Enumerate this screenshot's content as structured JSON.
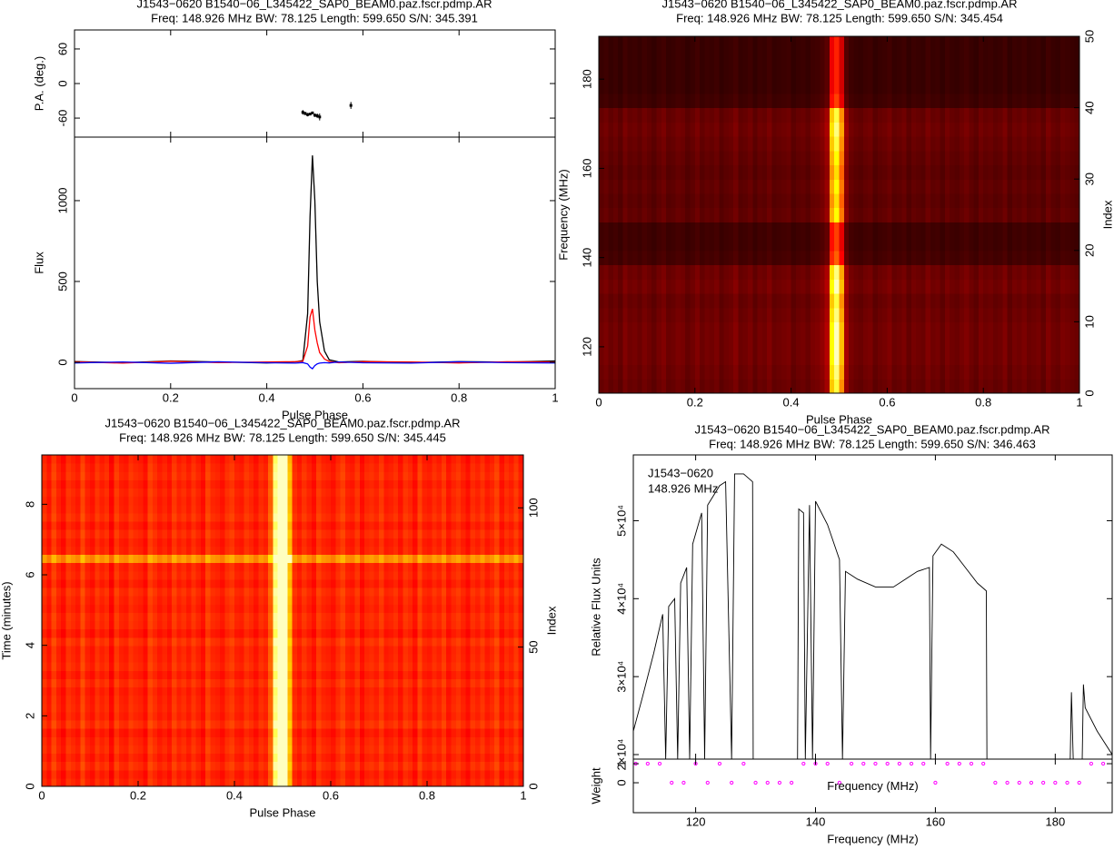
{
  "chart_data": [
    {
      "type": "profile",
      "title": "J1543−0620  B1540−06_L345422_SAP0_BEAM0.paz.fscr.pdmp.AR",
      "subtitle": "Freq: 148.926 MHz BW: 78.125 Length: 599.650 S/N: 345.391",
      "xlabel": "Pulse Phase",
      "xlim": [
        0,
        1
      ],
      "xticks": [
        0,
        0.2,
        0.4,
        0.6,
        0.8,
        1
      ],
      "x": [
        0,
        0.1,
        0.2,
        0.3,
        0.4,
        0.46,
        0.475,
        0.485,
        0.49,
        0.495,
        0.5,
        0.505,
        0.51,
        0.52,
        0.53,
        0.55,
        0.6,
        0.7,
        0.8,
        0.9,
        1
      ],
      "pa": {
        "ylabel": "P.A. (deg.)",
        "ylim": [
          -93,
          93
        ],
        "yticks": [
          -60,
          0,
          60
        ],
        "color": "#000000",
        "x": [
          0.475,
          0.48,
          0.485,
          0.49,
          0.495,
          0.5,
          0.505,
          0.51,
          0.575
        ],
        "values": [
          -50,
          -52,
          -54,
          -53,
          -51,
          -55,
          -56,
          -58,
          -38
        ],
        "errors": [
          4,
          3,
          3,
          2,
          2,
          3,
          4,
          6,
          6
        ]
      },
      "flux": {
        "ylabel": "Flux",
        "ylim": [
          -163,
          1393
        ],
        "yticks": [
          0,
          500,
          1000
        ],
        "series": [
          {
            "color": "#000000",
            "values": [
              5,
              -3,
              8,
              2,
              -4,
              3,
              10,
              300,
              900,
              1280,
              1000,
              500,
              250,
              70,
              15,
              2,
              6,
              -2,
              4,
              1,
              8
            ]
          },
          {
            "color": "#ff0000",
            "values": [
              3,
              -5,
              6,
              -2,
              2,
              4,
              6,
              100,
              280,
              330,
              200,
              120,
              60,
              20,
              5,
              -3,
              4,
              2,
              -4,
              3,
              2
            ]
          },
          {
            "color": "#0000ff",
            "values": [
              -4,
              2,
              -6,
              3,
              -3,
              -5,
              -2,
              -10,
              -30,
              -40,
              -20,
              -10,
              -5,
              -2,
              -4,
              2,
              -3,
              -5,
              3,
              -2,
              -4
            ]
          }
        ]
      }
    },
    {
      "type": "heatmap",
      "title": "J1543−0620  B1540−06_L345422_SAP0_BEAM0.paz.fscr.pdmp.AR",
      "subtitle": "Freq: 148.926 MHz BW: 78.125 Length: 599.650 S/N: 345.454",
      "xlabel": "Pulse Phase",
      "ylabel": "Frequency (MHz)",
      "y2label": "Index",
      "xlim": [
        0,
        1
      ],
      "xticks": [
        0,
        0.2,
        0.4,
        0.6,
        0.8,
        1
      ],
      "ylim": [
        109.6,
        189.6
      ],
      "yticks": [
        120,
        140,
        160,
        180
      ],
      "y2lim": [
        0,
        50
      ],
      "y2ticks": [
        0,
        10,
        20,
        30,
        40,
        50
      ],
      "colormap": "heat",
      "zlim": [
        0,
        1
      ],
      "profile": [
        0.2,
        0.22,
        0.19,
        0.21,
        0.18,
        0.23,
        0.2,
        0.21,
        0.19,
        0.22,
        0.2,
        0.18,
        0.21,
        0.23,
        0.19,
        0.2,
        0.22,
        0.21,
        0.18,
        0.2,
        0.23,
        0.19,
        0.21,
        0.2,
        0.22,
        0.18,
        0.2,
        0.21,
        0.24,
        0.19,
        0.2,
        0.22,
        0.18,
        0.21,
        0.2,
        0.23,
        0.19,
        0.2,
        0.21,
        0.22,
        0.18,
        0.2,
        0.21,
        0.19,
        0.22,
        0.23,
        0.26,
        0.32,
        0.85,
        1,
        0.75,
        0.3,
        0.22,
        0.2,
        0.19,
        0.21,
        0.22,
        0.18,
        0.2,
        0.21,
        0.23,
        0.19,
        0.2,
        0.22,
        0.18,
        0.21,
        0.2,
        0.19,
        0.23,
        0.2,
        0.21,
        0.18,
        0.22,
        0.2,
        0.19,
        0.21,
        0.23,
        0.2,
        0.18,
        0.22,
        0.2,
        0.21,
        0.19,
        0.2,
        0.23,
        0.18,
        0.21,
        0.2,
        0.22,
        0.19,
        0.2,
        0.21,
        0.18,
        0.23,
        0.2,
        0.19,
        0.22,
        0.21,
        0.2,
        0.19
      ],
      "row_weights": [
        0.9,
        0.95,
        1,
        1,
        1,
        0.95,
        0.9,
        1,
        0.95,
        0.6,
        0.55,
        0.55,
        0.85,
        0.8,
        0.85,
        0.8,
        0.85,
        0.9,
        0.95,
        0.9,
        0.55,
        0.5,
        0.5,
        0.5,
        0.5
      ]
    },
    {
      "type": "heatmap",
      "title": "J1543−0620  B1540−06_L345422_SAP0_BEAM0.paz.fscr.pdmp.AR",
      "subtitle": "Freq: 148.926 MHz BW: 78.125 Length: 599.650 S/N: 345.445",
      "xlabel": "Pulse Phase",
      "ylabel": "Time (minutes)",
      "y2label": "Index",
      "xlim": [
        0,
        1
      ],
      "xticks": [
        0,
        0.2,
        0.4,
        0.6,
        0.8,
        1
      ],
      "ylim": [
        0,
        9.4
      ],
      "yticks": [
        0,
        2,
        4,
        6,
        8
      ],
      "y2lim": [
        0,
        119
      ],
      "y2ticks": [
        0,
        50,
        100
      ],
      "colormap": "heat",
      "zlim": [
        0,
        1
      ],
      "profile": [
        0.52,
        0.48,
        0.55,
        0.5,
        0.47,
        0.53,
        0.51,
        0.49,
        0.56,
        0.5,
        0.48,
        0.53,
        0.5,
        0.52,
        0.46,
        0.54,
        0.5,
        0.49,
        0.53,
        0.51,
        0.5,
        0.47,
        0.55,
        0.52,
        0.49,
        0.51,
        0.48,
        0.54,
        0.5,
        0.52,
        0.49,
        0.53,
        0.5,
        0.47,
        0.55,
        0.51,
        0.5,
        0.48,
        0.52,
        0.54,
        0.5,
        0.49,
        0.53,
        0.51,
        0.48,
        0.52,
        0.5,
        0.6,
        0.95,
        1.1,
        1.05,
        0.75,
        0.52,
        0.49,
        0.53,
        0.5,
        0.47,
        0.54,
        0.51,
        0.5,
        0.48,
        0.52,
        0.55,
        0.5,
        0.49,
        0.53,
        0.47,
        0.51,
        0.52,
        0.5,
        0.54,
        0.49,
        0.5,
        0.52,
        0.48,
        0.53,
        0.51,
        0.47,
        0.55,
        0.5,
        0.49,
        0.52,
        0.5,
        0.54,
        0.48,
        0.51,
        0.53,
        0.5,
        0.47,
        0.52,
        0.5,
        0.53,
        0.49,
        0.51,
        0.55,
        0.48,
        0.52,
        0.5,
        0.54,
        0.49
      ],
      "row_weights": [
        1,
        0.97,
        1.03,
        0.98,
        1.02,
        1,
        0.96,
        1.04,
        0.99,
        1.01,
        1,
        0.98,
        1.03,
        0.97,
        1.02,
        1,
        0.99,
        1.04,
        0.96,
        1.01,
        1.02,
        0.98,
        1,
        1.03,
        0.97,
        1.01,
        0.99,
        1.35,
        1,
        0.98,
        1.02,
        0.97,
        1.03,
        1,
        0.99,
        1.01,
        0.98,
        1.02,
        1,
        0.97
      ]
    },
    {
      "type": "spectrum",
      "title": "J1543−0620  B1540−06_L345422_SAP0_BEAM0.paz.fscr.pdmp.AR",
      "subtitle": "Freq: 148.926 MHz BW: 78.125 Length: 599.650 S/N: 346.463",
      "annotations": [
        "J1543−0620",
        "148.926 MHz"
      ],
      "xlabel": "Frequency (MHz)",
      "ylabel": "Relative Flux Units",
      "xlim": [
        109.6,
        189.5
      ],
      "xticks": [
        120,
        140,
        160,
        180
      ],
      "ylim": [
        19420,
        58440
      ],
      "yticks": [
        {
          "value": 20000,
          "label": "2×10⁴"
        },
        {
          "value": 30000,
          "label": "3×10⁴"
        },
        {
          "value": 40000,
          "label": "4×10⁴"
        },
        {
          "value": 50000,
          "label": "5×10⁴"
        }
      ],
      "color": "#000000",
      "x": [
        109.6,
        111,
        113,
        114.5,
        115,
        115.5,
        116.5,
        117,
        117.5,
        118.5,
        119,
        119.5,
        121,
        121.5,
        122,
        124,
        125,
        126,
        126.5,
        128,
        129.5,
        129.6,
        137,
        137.2,
        138,
        138.3,
        139,
        139.5,
        140,
        142,
        144,
        144.5,
        145,
        147,
        150,
        153,
        155,
        157,
        159,
        159.2,
        159.6,
        161,
        163,
        165,
        167,
        168.5,
        168.6,
        182.5,
        182.7,
        183,
        184.5,
        184.7,
        185,
        187,
        189.5
      ],
      "values": [
        23000,
        27000,
        33000,
        38000,
        19420,
        39000,
        40000,
        19420,
        42000,
        44000,
        19420,
        47000,
        51000,
        19420,
        52000,
        54500,
        55000,
        19420,
        56000,
        56000,
        55000,
        19420,
        19420,
        51500,
        51000,
        19420,
        52000,
        19420,
        52500,
        49500,
        45000,
        19420,
        43500,
        42500,
        41500,
        41500,
        42500,
        43500,
        44000,
        19420,
        45500,
        47000,
        46000,
        44000,
        42000,
        41000,
        19420,
        19420,
        28000,
        19420,
        19420,
        29000,
        26000,
        23000,
        20000
      ],
      "weight": {
        "ylabel": "Weight",
        "ylim": [
          -1.57,
          1.24
        ],
        "yticks": [
          0,
          1
        ],
        "color": "#ff00ff",
        "x": [
          110,
          112,
          114,
          116,
          118,
          120,
          122,
          124,
          126,
          128,
          130,
          132,
          134,
          136,
          138,
          140,
          142,
          144,
          146,
          148,
          150,
          152,
          154,
          156,
          158,
          160,
          162,
          164,
          166,
          168,
          170,
          172,
          174,
          176,
          178,
          180,
          182,
          184,
          186,
          188
        ],
        "values": [
          1,
          1,
          1,
          0,
          0,
          1,
          0,
          1,
          0,
          1,
          0,
          0,
          0,
          0,
          1,
          1,
          1,
          0,
          1,
          1,
          1,
          1,
          1,
          1,
          1,
          0,
          1,
          1,
          1,
          1,
          0,
          0,
          0,
          0,
          0,
          0,
          0,
          0,
          1,
          1
        ]
      }
    }
  ]
}
